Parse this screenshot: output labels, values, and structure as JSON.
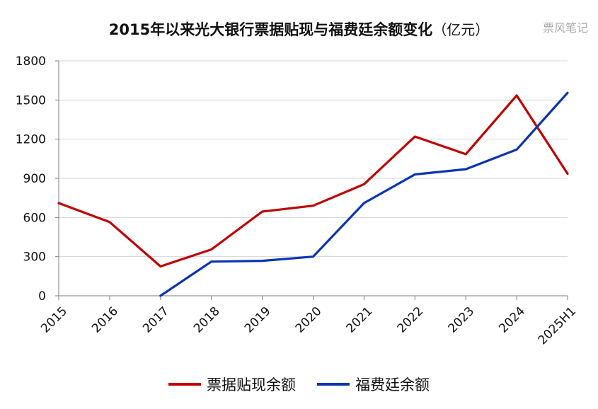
{
  "watermark": "票风笔记",
  "chart_data": {
    "type": "line",
    "title": "2015年以来光大银行票据贴现与福费廷余额变化",
    "title_unit": "（亿元）",
    "categories": [
      "2015",
      "2016",
      "2017",
      "2018",
      "2019",
      "2020",
      "2021",
      "2022",
      "2023",
      "2024",
      "2025H1"
    ],
    "ylim": [
      0,
      1800
    ],
    "yticks": [
      0,
      300,
      600,
      900,
      1200,
      1500,
      1800
    ],
    "grid": "horizontal",
    "legend_position": "bottom",
    "series": [
      {
        "name": "票据贴现余额",
        "color": "#c00000",
        "values": [
          710,
          565,
          225,
          355,
          645,
          690,
          855,
          1220,
          1085,
          1535,
          935
        ]
      },
      {
        "name": "福费廷余额",
        "color": "#0a34b0",
        "values": [
          null,
          null,
          0,
          262,
          268,
          300,
          710,
          930,
          970,
          1120,
          1555
        ]
      }
    ]
  }
}
